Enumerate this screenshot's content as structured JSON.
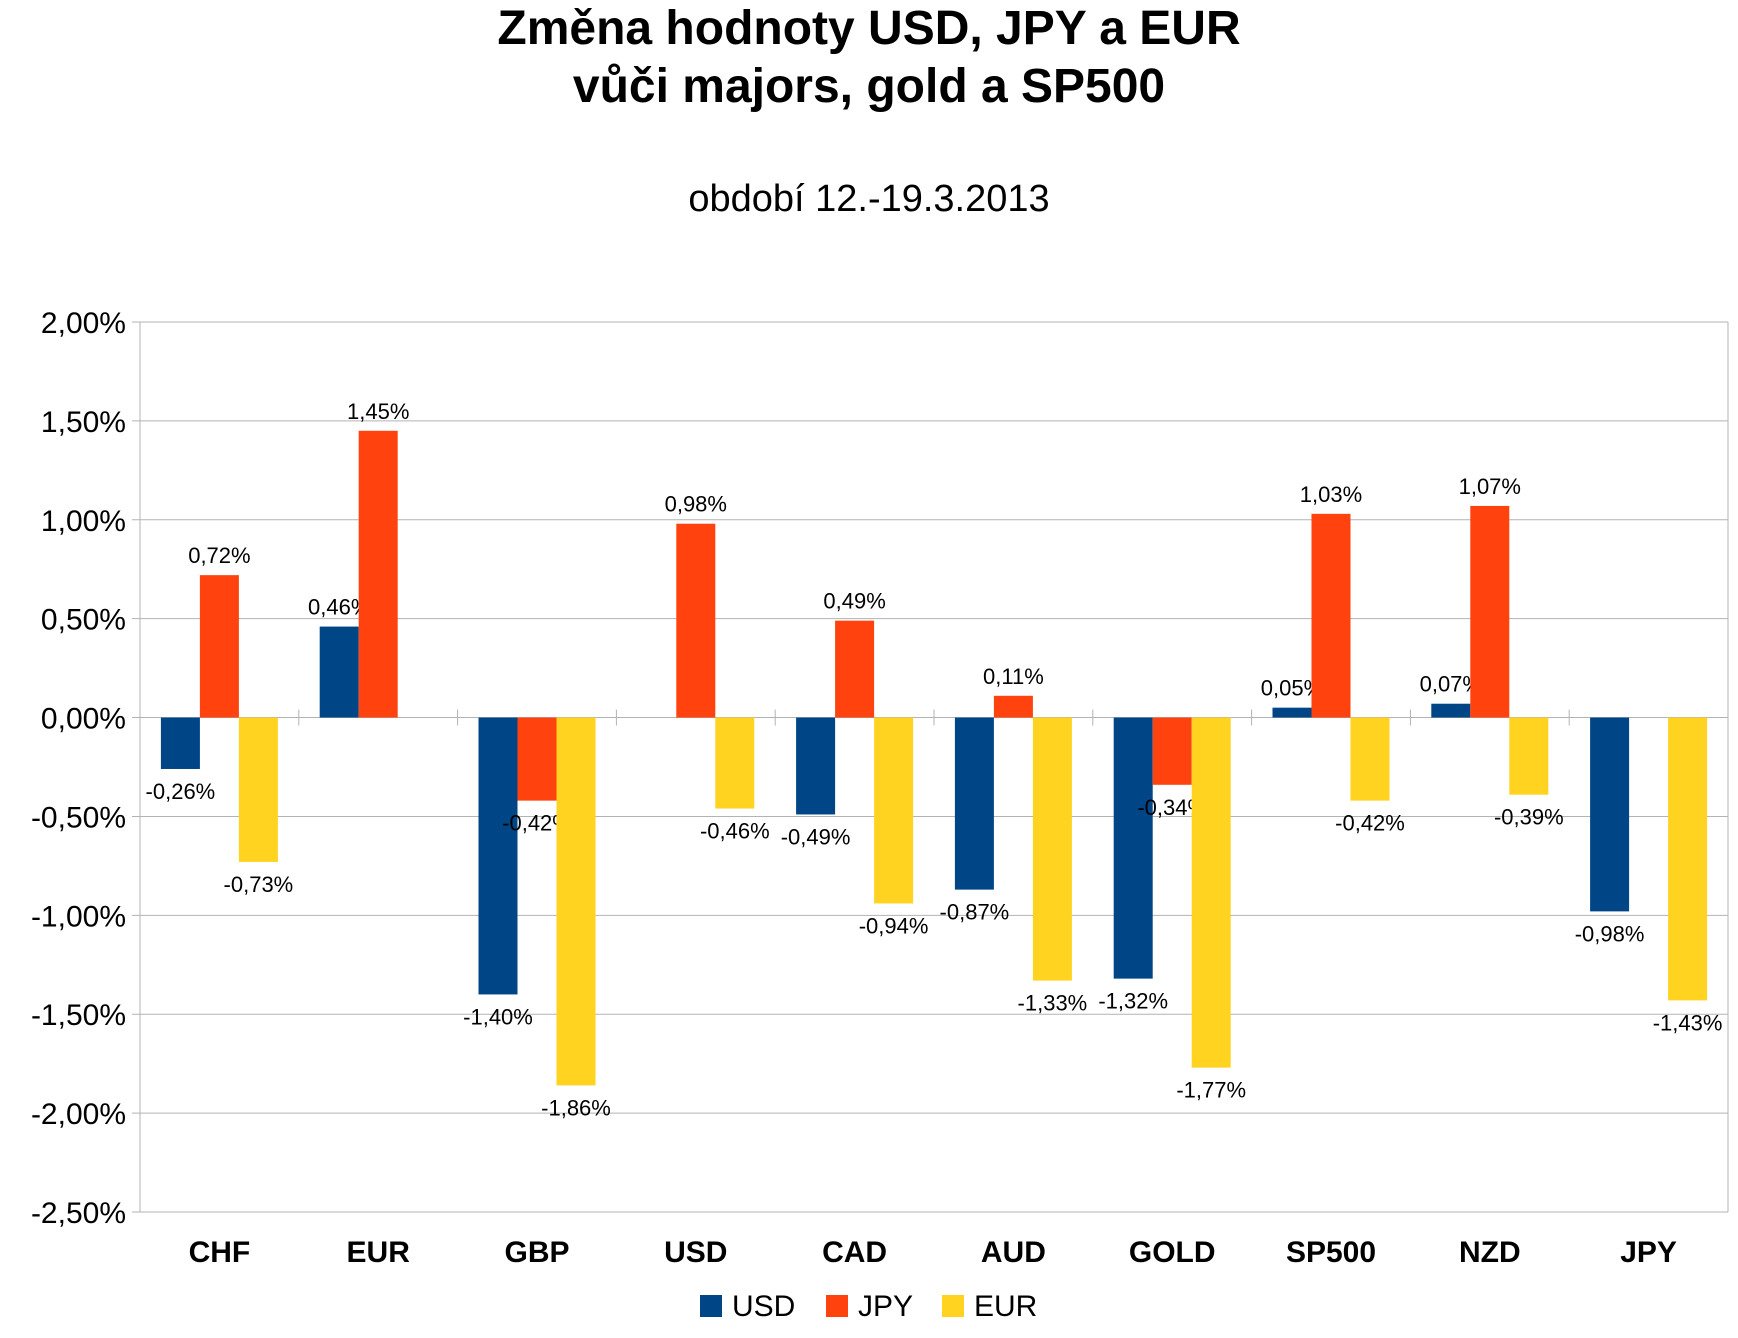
{
  "chart_data": {
    "type": "bar",
    "title": "Změna hodnoty USD, JPY a EUR",
    "title_line2": "vůči majors, gold a SP500",
    "subtitle": "období 12.-19.3.2013",
    "categories": [
      "CHF",
      "EUR",
      "GBP",
      "USD",
      "CAD",
      "AUD",
      "GOLD",
      "SP500",
      "NZD",
      "JPY"
    ],
    "series": [
      {
        "name": "USD",
        "color": "#004586",
        "values": [
          -0.26,
          0.46,
          -1.4,
          null,
          -0.49,
          -0.87,
          -1.32,
          0.05,
          0.07,
          -0.98
        ],
        "labels": [
          "-0,26%",
          "0,46%",
          "-1,40%",
          "",
          "-0,49%",
          "-0,87%",
          "-1,32%",
          "0,05%",
          "0,07%",
          "-0,98%"
        ]
      },
      {
        "name": "JPY",
        "color": "#ff420e",
        "values": [
          0.72,
          1.45,
          -0.42,
          0.98,
          0.49,
          0.11,
          -0.34,
          1.03,
          1.07,
          null
        ],
        "labels": [
          "0,72%",
          "1,45%",
          "-0,42%",
          "0,98%",
          "0,49%",
          "0,11%",
          "-0,34%",
          "1,03%",
          "1,07%",
          ""
        ]
      },
      {
        "name": "EUR",
        "color": "#ffd320",
        "values": [
          -0.73,
          null,
          -1.86,
          -0.46,
          -0.94,
          -1.33,
          -1.77,
          -0.42,
          -0.39,
          -1.43
        ],
        "labels": [
          "-0,73%",
          "",
          "-1,86%",
          "-0,46%",
          "-0,94%",
          "-1,33%",
          "-1,77%",
          "-0,42%",
          "-0,39%",
          "-1,43%"
        ]
      }
    ],
    "ylim": [
      -2.5,
      2.0
    ],
    "ytick_values": [
      2.0,
      1.5,
      1.0,
      0.5,
      0.0,
      -0.5,
      -1.0,
      -1.5,
      -2.0,
      -2.5
    ],
    "ytick_labels": [
      "2,00%",
      "1,50%",
      "1,00%",
      "0,50%",
      "0,00%",
      "-0,50%",
      "-1,00%",
      "-1,50%",
      "-2,00%",
      "-2,50%"
    ],
    "grid": true,
    "legend": "bottom-center",
    "colors": {
      "grid": "#b3b3b3",
      "axis": "#b3b3b3"
    }
  }
}
